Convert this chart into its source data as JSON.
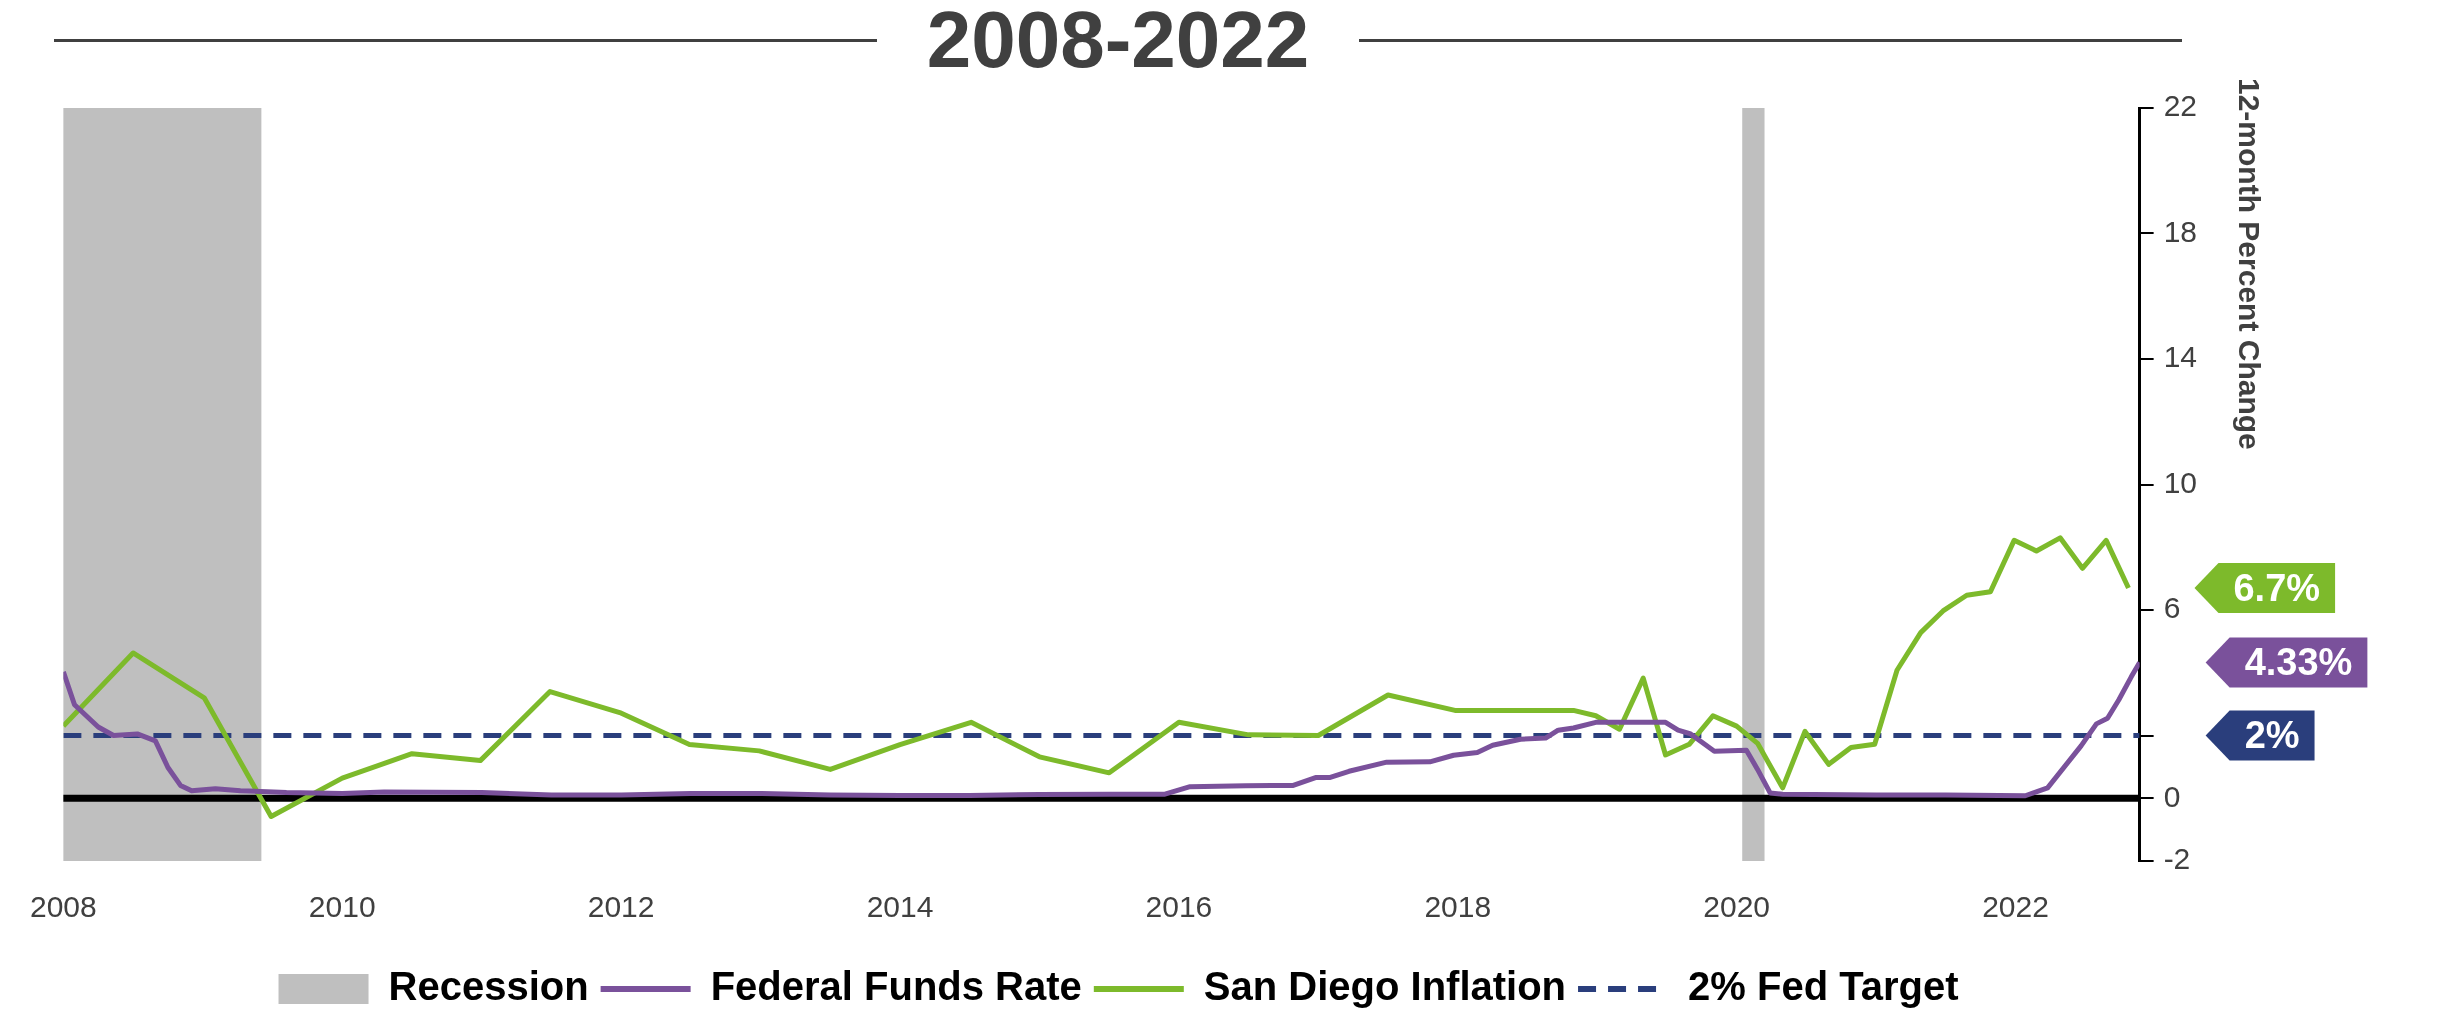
{
  "chart_data": {
    "type": "line",
    "title": "2008-2022",
    "ylabel": "12-month Percent Change",
    "xlim": [
      2008,
      2022.89
    ],
    "xticks": [
      2008,
      2010,
      2012,
      2014,
      2016,
      2018,
      2020,
      2022
    ],
    "ylim": [
      -2,
      22
    ],
    "yticks": [
      -2,
      0,
      {
        "value": 2,
        "label": null
      },
      6,
      10,
      14,
      18,
      22
    ],
    "grid": false,
    "legend": "bottom",
    "marker": "none",
    "bands": [
      {
        "axis": "x",
        "from": 2008.0,
        "to": 2009.42,
        "label": "Recession",
        "color": "#bfbfbf"
      },
      {
        "axis": "x",
        "from": 2020.04,
        "to": 2020.2,
        "color": "#bfbfbf"
      }
    ],
    "ref_lines": [
      {
        "axis": "y",
        "value": 0,
        "color": "#000000"
      }
    ],
    "series": [
      {
        "name": "Federal Funds Rate",
        "color": "#7a519b",
        "line_style": "solid",
        "x": [
          2008.0,
          2008.08,
          2008.25,
          2008.36,
          2008.53,
          2008.66,
          2008.75,
          2008.84,
          2008.92,
          2009.09,
          2009.27,
          2009.6,
          2010.0,
          2010.3,
          2011.0,
          2011.5,
          2012.0,
          2012.5,
          2013.0,
          2013.5,
          2014.0,
          2014.5,
          2015.0,
          2015.5,
          2015.9,
          2016.08,
          2016.48,
          2016.82,
          2016.98,
          2017.08,
          2017.22,
          2017.49,
          2017.8,
          2017.97,
          2018.14,
          2018.25,
          2018.45,
          2018.63,
          2018.72,
          2018.83,
          2018.99,
          2019.49,
          2019.58,
          2019.67,
          2019.84,
          2020.07,
          2020.15,
          2020.24,
          2020.33,
          2021.0,
          2021.5,
          2022.07,
          2022.23,
          2022.47,
          2022.58,
          2022.66,
          2022.74,
          2022.83,
          2022.89
        ],
        "values": [
          4.03,
          2.98,
          2.27,
          2.0,
          2.05,
          1.83,
          0.98,
          0.41,
          0.24,
          0.3,
          0.24,
          0.18,
          0.15,
          0.2,
          0.18,
          0.1,
          0.1,
          0.15,
          0.15,
          0.1,
          0.09,
          0.09,
          0.12,
          0.13,
          0.13,
          0.37,
          0.4,
          0.41,
          0.66,
          0.66,
          0.86,
          1.15,
          1.16,
          1.37,
          1.46,
          1.69,
          1.88,
          1.92,
          2.17,
          2.24,
          2.42,
          2.42,
          2.17,
          2.05,
          1.5,
          1.53,
          0.92,
          0.17,
          0.13,
          0.1,
          0.1,
          0.08,
          0.33,
          1.67,
          2.37,
          2.55,
          3.13,
          3.87,
          4.33
        ]
      },
      {
        "name": "San Diego Inflation",
        "color": "#7dba2b",
        "line_style": "solid",
        "x": [
          2008.0,
          2008.5,
          2009.01,
          2009.49,
          2010.0,
          2010.5,
          2010.99,
          2011.49,
          2011.99,
          2012.49,
          2012.99,
          2013.5,
          2014.0,
          2014.51,
          2015.0,
          2015.5,
          2016.0,
          2016.5,
          2017.0,
          2017.5,
          2017.98,
          2018.83,
          2018.99,
          2019.16,
          2019.33,
          2019.49,
          2019.66,
          2019.83,
          2020.0,
          2020.15,
          2020.33,
          2020.49,
          2020.66,
          2020.82,
          2020.99,
          2021.15,
          2021.32,
          2021.48,
          2021.65,
          2021.82,
          2021.99,
          2022.15,
          2022.32,
          2022.48,
          2022.65,
          2022.81
        ],
        "values": [
          2.3,
          4.63,
          3.2,
          -0.58,
          0.64,
          1.42,
          1.2,
          3.4,
          2.73,
          1.71,
          1.51,
          0.92,
          1.71,
          2.42,
          1.32,
          0.81,
          2.42,
          2.02,
          2.0,
          3.29,
          2.8,
          2.8,
          2.63,
          2.2,
          3.83,
          1.38,
          1.72,
          2.63,
          2.3,
          1.75,
          0.33,
          2.13,
          1.08,
          1.62,
          1.72,
          4.08,
          5.28,
          5.97,
          6.47,
          6.58,
          8.22,
          7.88,
          8.3,
          7.33,
          8.22,
          6.7
        ]
      },
      {
        "name": "2% Fed Target",
        "color": "#2a3e7c",
        "line_style": "dashed",
        "x": [
          2008,
          2022.89
        ],
        "values": [
          2,
          2
        ]
      }
    ],
    "annotations": [
      "4.33%",
      "6.7%",
      "2%"
    ]
  }
}
